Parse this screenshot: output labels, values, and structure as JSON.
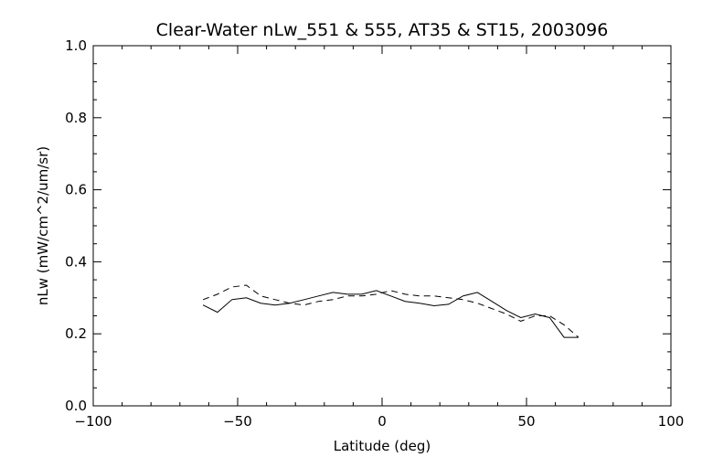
{
  "chart_data": {
    "type": "line",
    "title": "Clear-Water nLw_551 & 555, AT35 & ST15, 2003096",
    "xlabel": "Latitude (deg)",
    "ylabel": "nLw (mW/cm^2/um/sr)",
    "xlim": [
      -100,
      100
    ],
    "ylim": [
      0.0,
      1.0
    ],
    "xticks": [
      "-100",
      "-50",
      "0",
      "50",
      "100"
    ],
    "yticks": [
      "0.0",
      "0.2",
      "0.4",
      "0.6",
      "0.8",
      "1.0"
    ],
    "grid": false,
    "series": [
      {
        "style": "solid",
        "x": [
          -62,
          -57,
          -52,
          -47,
          -42,
          -37,
          -32,
          -27,
          -22,
          -17,
          -12,
          -7,
          -2,
          3,
          8,
          13,
          18,
          23,
          28,
          33,
          38,
          43,
          48,
          53,
          58,
          63,
          68
        ],
        "y": [
          0.28,
          0.26,
          0.295,
          0.3,
          0.285,
          0.28,
          0.285,
          0.295,
          0.305,
          0.315,
          0.31,
          0.31,
          0.32,
          0.305,
          0.29,
          0.285,
          0.278,
          0.282,
          0.305,
          0.315,
          0.29,
          0.265,
          0.245,
          0.255,
          0.245,
          0.19,
          0.19
        ]
      },
      {
        "style": "dashed",
        "x": [
          -62,
          -57,
          -52,
          -47,
          -42,
          -37,
          -32,
          -27,
          -22,
          -17,
          -12,
          -7,
          -2,
          3,
          8,
          13,
          18,
          23,
          28,
          33,
          38,
          43,
          48,
          53,
          58,
          63,
          68
        ],
        "y": [
          0.295,
          0.31,
          0.33,
          0.335,
          0.305,
          0.295,
          0.285,
          0.28,
          0.29,
          0.295,
          0.305,
          0.305,
          0.31,
          0.32,
          0.31,
          0.305,
          0.305,
          0.3,
          0.295,
          0.285,
          0.27,
          0.255,
          0.235,
          0.25,
          0.25,
          0.225,
          0.19
        ]
      }
    ]
  }
}
